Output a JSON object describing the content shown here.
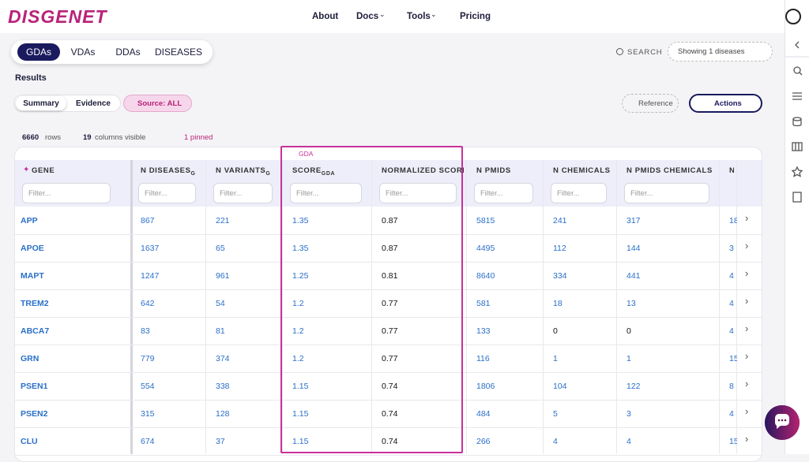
{
  "nav": {
    "logo": "DISGENET",
    "links": [
      "About",
      "Docs",
      "Tools",
      "Pricing"
    ]
  },
  "tabs": [
    "GDAs",
    "VDAs",
    "DDAs",
    "DISEASES"
  ],
  "search": "SEARCH",
  "filter_dropdown": "Showing 1 diseases",
  "results_title": "Results",
  "view_toggle": [
    "Summary",
    "Evidence"
  ],
  "source": {
    "label": "Source:",
    "value": "ALL"
  },
  "reference_button": "Reference",
  "actions_button": "Actions",
  "stats": {
    "rows_count": "6660",
    "rows_label": "rows",
    "columns_count": "19",
    "columns_label": "columns visible",
    "pinned": "1 pinned"
  },
  "table": {
    "group_label": "GDA",
    "filter_placeholder": "Filter...",
    "columns": [
      {
        "label": "GENE"
      },
      {
        "label": "N DISEASES",
        "sub": "G"
      },
      {
        "label": "N VARIANTS",
        "sub": "G"
      },
      {
        "label": "SCORE",
        "sub": "GDA"
      },
      {
        "label": "NORMALIZED SCORE"
      },
      {
        "label": "N PMIDS"
      },
      {
        "label": "N CHEMICALS"
      },
      {
        "label": "N PMIDS CHEMICALS"
      },
      {
        "label": "N"
      }
    ],
    "rows": [
      [
        "APP",
        "867",
        "221",
        "1.35",
        "0.87",
        "5815",
        "241",
        "317",
        "18"
      ],
      [
        "APOE",
        "1637",
        "65",
        "1.35",
        "0.87",
        "4495",
        "112",
        "144",
        "3"
      ],
      [
        "MAPT",
        "1247",
        "961",
        "1.25",
        "0.81",
        "8640",
        "334",
        "441",
        "4"
      ],
      [
        "TREM2",
        "642",
        "54",
        "1.2",
        "0.77",
        "581",
        "18",
        "13",
        "4"
      ],
      [
        "ABCA7",
        "83",
        "81",
        "1.2",
        "0.77",
        "133",
        "0",
        "0",
        "4"
      ],
      [
        "GRN",
        "779",
        "374",
        "1.2",
        "0.77",
        "116",
        "1",
        "1",
        "15"
      ],
      [
        "PSEN1",
        "554",
        "338",
        "1.15",
        "0.74",
        "1806",
        "104",
        "122",
        "8"
      ],
      [
        "PSEN2",
        "315",
        "128",
        "1.15",
        "0.74",
        "484",
        "5",
        "3",
        "4"
      ],
      [
        "CLU",
        "674",
        "37",
        "1.15",
        "0.74",
        "266",
        "4",
        "4",
        "15"
      ]
    ]
  }
}
